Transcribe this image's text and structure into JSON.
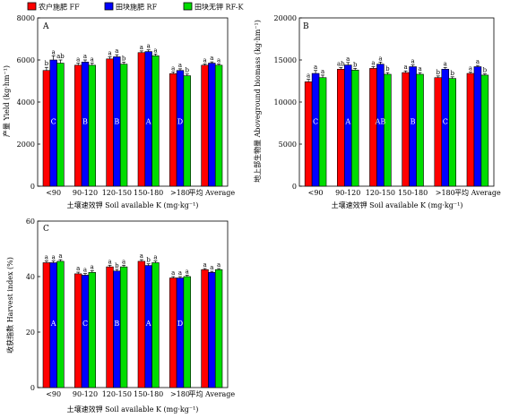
{
  "legend": {
    "items": [
      {
        "label": "农户施肥 FF",
        "color": "#ff0000"
      },
      {
        "label": "田块施肥 RF",
        "color": "#0000ff"
      },
      {
        "label": "田块无钾 RF-K",
        "color": "#00dd00"
      }
    ]
  },
  "chart_data": [
    {
      "type": "bar",
      "panel": "A",
      "categories": [
        "<90",
        "90-120",
        "120-150",
        "150-180",
        ">180",
        "平均 Average"
      ],
      "series": [
        {
          "name": "农户施肥 FF",
          "color": "#ff0000",
          "values": [
            5500,
            5750,
            6050,
            6350,
            5350,
            5750
          ]
        },
        {
          "name": "田块施肥 RF",
          "color": "#0000ff",
          "values": [
            6000,
            5900,
            6150,
            6400,
            5500,
            5850
          ]
        },
        {
          "name": "田块无钾 RF-K",
          "color": "#00dd00",
          "values": [
            5850,
            5750,
            5800,
            6200,
            5250,
            5750
          ]
        }
      ],
      "errors": [
        [
          150,
          100,
          100,
          80,
          80,
          60
        ],
        [
          200,
          100,
          100,
          80,
          80,
          60
        ],
        [
          150,
          100,
          100,
          80,
          80,
          60
        ]
      ],
      "significance": [
        [
          "b",
          "a",
          "a",
          "a",
          "a",
          "a"
        ],
        [
          "a",
          "a",
          "a",
          "a",
          "a",
          "a"
        ],
        [
          "ab",
          "a",
          "b",
          "a",
          "b",
          "a"
        ]
      ],
      "group_labels": [
        "C",
        "B",
        "B",
        "A",
        "D",
        ""
      ],
      "ylabel": "产量 Yield (kg·hm⁻¹)",
      "xlabel": "土壤速效钾 Soil available K (mg·kg⁻¹)",
      "ylim": [
        0,
        8000
      ],
      "yticks": [
        "0",
        "2000",
        "4000",
        "6000",
        "8000"
      ]
    },
    {
      "type": "bar",
      "panel": "B",
      "categories": [
        "<90",
        "90-120",
        "120-150",
        "150-180",
        ">180",
        "平均 Average"
      ],
      "series": [
        {
          "name": "农户施肥 FF",
          "color": "#ff0000",
          "values": [
            12400,
            13900,
            14000,
            13500,
            12900,
            13400
          ]
        },
        {
          "name": "田块施肥 RF",
          "color": "#0000ff",
          "values": [
            13400,
            14400,
            14500,
            14200,
            13900,
            14200
          ]
        },
        {
          "name": "田块无钾 RF-K",
          "color": "#00dd00",
          "values": [
            12900,
            13800,
            13300,
            13300,
            12800,
            13200
          ]
        }
      ],
      "errors": [
        [
          300,
          200,
          200,
          200,
          200,
          150
        ],
        [
          350,
          300,
          250,
          200,
          200,
          150
        ],
        [
          300,
          200,
          200,
          200,
          200,
          150
        ]
      ],
      "significance": [
        [
          "a",
          "ab",
          "a",
          "a",
          "b",
          "a"
        ],
        [
          "a",
          "a",
          "a",
          "a",
          "a",
          "a"
        ],
        [
          "a",
          "b",
          "b",
          "a",
          "b",
          "b"
        ]
      ],
      "group_labels": [
        "C",
        "A",
        "AB",
        "B",
        "C",
        ""
      ],
      "ylabel": "地上部生物量 Aboveground biomass (kg·hm⁻¹)",
      "xlabel": "土壤速效钾 Soil available K (mg·kg⁻¹)",
      "ylim": [
        0,
        20000
      ],
      "yticks": [
        "0",
        "5000",
        "10000",
        "15000",
        "20000"
      ]
    },
    {
      "type": "bar",
      "panel": "C",
      "categories": [
        "<90",
        "90-120",
        "120-150",
        "150-180",
        ">180",
        "平均 Average"
      ],
      "series": [
        {
          "name": "农户施肥 FF",
          "color": "#ff0000",
          "values": [
            45.0,
            41.0,
            43.5,
            45.5,
            39.5,
            42.5
          ]
        },
        {
          "name": "田块施肥 RF",
          "color": "#0000ff",
          "values": [
            45.0,
            40.5,
            42.0,
            44.0,
            39.5,
            41.5
          ]
        },
        {
          "name": "田块无钾 RF-K",
          "color": "#00dd00",
          "values": [
            45.5,
            41.5,
            43.5,
            45.0,
            40.0,
            42.5
          ]
        }
      ],
      "errors": [
        [
          0.6,
          0.6,
          0.6,
          0.6,
          0.5,
          0.4
        ],
        [
          0.6,
          0.6,
          0.6,
          0.6,
          0.5,
          0.4
        ],
        [
          0.6,
          0.6,
          0.6,
          0.6,
          0.5,
          0.4
        ]
      ],
      "significance": [
        [
          "a",
          "a",
          "a",
          "a",
          "a",
          "a"
        ],
        [
          "a",
          "a",
          "b",
          "b",
          "a",
          "a"
        ],
        [
          "a",
          "a",
          "a",
          "a",
          "a",
          "a"
        ]
      ],
      "group_labels": [
        "A",
        "C",
        "B",
        "A",
        "D",
        ""
      ],
      "ylabel": "收获指数 Harvest index (%)",
      "xlabel": "土壤速效钾 Soil available K (mg·kg⁻¹)",
      "ylim": [
        0,
        60
      ],
      "yticks": [
        "0",
        "20",
        "40",
        "60"
      ]
    }
  ]
}
